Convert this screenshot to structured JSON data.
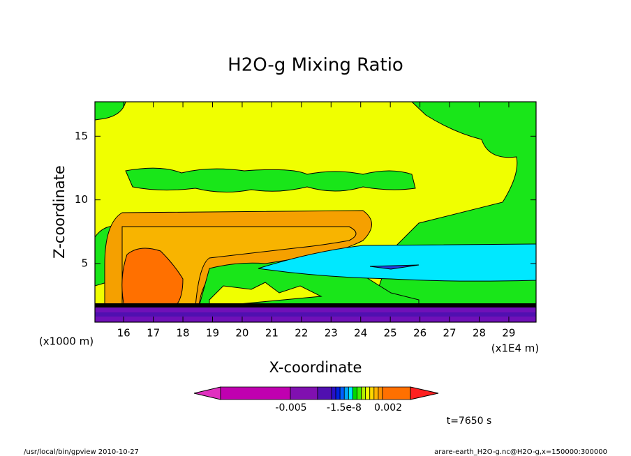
{
  "chart_data": {
    "type": "contour",
    "title": "H2O-g Mixing Ratio",
    "x_label": "X-coordinate",
    "y_label": "Z-coordinate",
    "x_unit": "(x1E4 m)",
    "y_unit": "(x1000 m)",
    "xlim": [
      15.03,
      29.92
    ],
    "xticks": [
      16,
      17,
      18,
      19,
      20,
      21,
      22,
      23,
      24,
      25,
      26,
      27,
      28,
      29
    ],
    "ylim": [
      0.4,
      17.7
    ],
    "yticks": [
      5,
      10,
      15
    ],
    "colorbar": {
      "colors": [
        "#e030c0",
        "#c000b0",
        "#8010b0",
        "#5010b0",
        "#2810c8",
        "#0020e0",
        "#0060ff",
        "#00a8ff",
        "#00e8ff",
        "#00d800",
        "#40f000",
        "#b0f000",
        "#f0ff00",
        "#ffd800",
        "#ffb400",
        "#ff9000",
        "#ff7000",
        "#ff2020"
      ],
      "ticks": [
        -0.005,
        -1.5e-08,
        0.002
      ]
    },
    "time": "t=7650 s",
    "footer_left": "/usr/local/bin/gpview  2010-10-27",
    "footer_right": "arare-earth_H2O-g.nc@H2O-g,x=150000:300000"
  }
}
